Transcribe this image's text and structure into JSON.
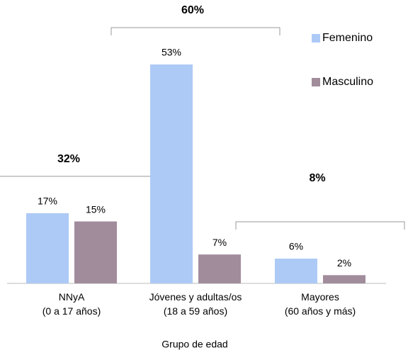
{
  "chart_data": {
    "type": "bar",
    "categories": [
      [
        "NNyA",
        "(0 a 17 años)"
      ],
      [
        "Jóvenes y adultas/os",
        "(18 a 59 años)"
      ],
      [
        "Mayores",
        "(60 años y más)"
      ]
    ],
    "series": [
      {
        "name": "Femenino",
        "color": "#adcaf6",
        "values": [
          17,
          53,
          6
        ],
        "value_labels": [
          "17%",
          "53%",
          "6%"
        ]
      },
      {
        "name": "Masculino",
        "color": "#a18c9c",
        "values": [
          15,
          7,
          2
        ],
        "value_labels": [
          "15%",
          "7%",
          "2%"
        ]
      }
    ],
    "group_totals": [
      32,
      60,
      8
    ],
    "group_total_labels": [
      "32%",
      "60%",
      "8%"
    ],
    "xlabel": "Grupo de edad",
    "legend": "top-right"
  }
}
